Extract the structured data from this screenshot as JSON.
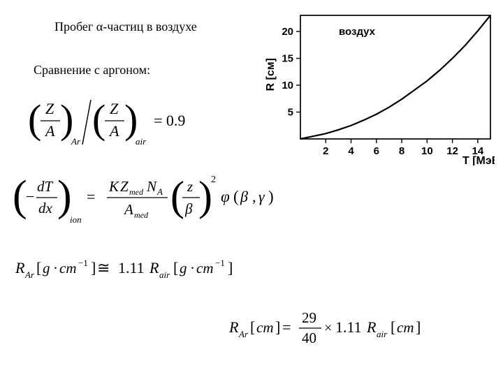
{
  "title": "Пробег α-частиц в воздухе",
  "subtitle": "Сравнение с аргоном:",
  "chart": {
    "type": "line",
    "background_color": "#ffffff",
    "line_color": "#000000",
    "line_width": 2.2,
    "border_color": "#000000",
    "xlabel": "T [МэВ]",
    "ylabel": "R [см]",
    "legend_text": "воздух",
    "xlim": [
      0,
      15
    ],
    "ylim": [
      0,
      23
    ],
    "xtick_values": [
      2,
      4,
      6,
      8,
      10,
      12,
      14
    ],
    "xtick_labels": [
      "2",
      "4",
      "6",
      "8",
      "10",
      "12",
      "14"
    ],
    "ytick_values": [
      5,
      10,
      15,
      20
    ],
    "ytick_labels": [
      "5",
      "10",
      "15",
      "20"
    ],
    "label_fontsize": 16,
    "tick_fontsize": 15,
    "x": [
      0,
      1,
      2,
      3,
      4,
      5,
      6,
      7,
      8,
      9,
      10,
      11,
      12,
      13,
      14,
      15
    ],
    "y": [
      0,
      0.5,
      1.0,
      1.7,
      2.5,
      3.5,
      4.6,
      5.9,
      7.4,
      9.1,
      10.8,
      12.8,
      15.0,
      17.4,
      20.1,
      23.0
    ]
  },
  "eq1": {
    "text_parts": {
      "Z": "Z",
      "A": "A",
      "sub_Ar": "Ar",
      "sub_air": "air",
      "eq": " = 0.9"
    }
  },
  "eq2": {
    "text_parts": {
      "dT": "dT",
      "dx": "dx",
      "minus": "−",
      "ion": "ion",
      "K": "K",
      "Zmed": "Z",
      "medsub": "med",
      "NA": "N",
      "Asub": "A",
      "Amed": "A",
      "z": "z",
      "beta": "β",
      "phi": "φ",
      "open": "(",
      "close": ")",
      "comma": ",",
      "gamma": "γ",
      "eq": " = ",
      "two": "2"
    }
  },
  "eq3": {
    "R": "R",
    "Ar": "Ar",
    "bracket_open": "[",
    "g": "g",
    "dot": "·",
    "cm": "cm",
    "minus1": "−1",
    "bracket_close": "]",
    "approx": " ≅ ",
    "val": "1.11",
    "air": "air"
  },
  "eq4": {
    "R": "R",
    "Ar": "Ar",
    "bracket_open": "[",
    "cm": "cm",
    "bracket_close": "]",
    "eq": " = ",
    "num": "29",
    "den": "40",
    "times": "×",
    "val": "1.11",
    "air": "air"
  }
}
